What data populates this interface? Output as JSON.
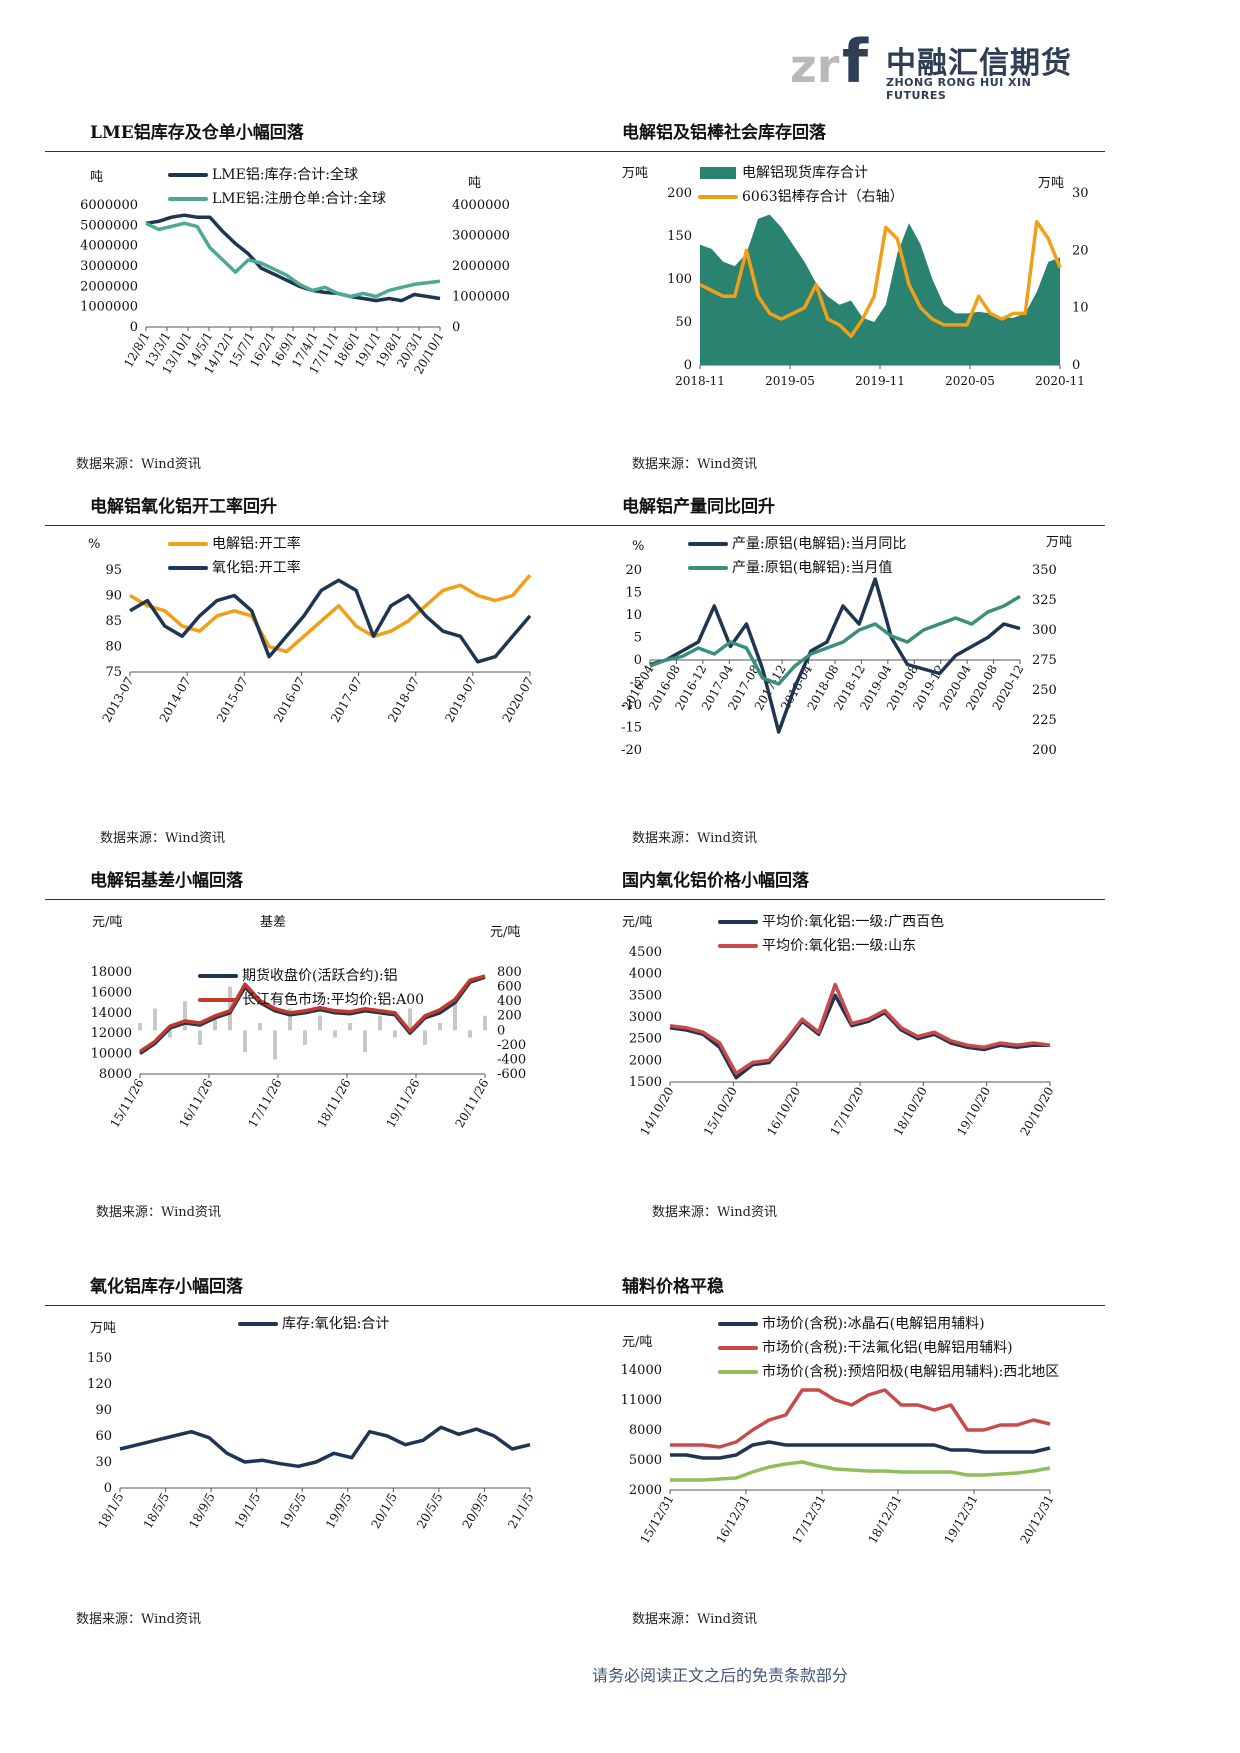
{
  "header": {
    "logo_cn": "中融汇信期货",
    "logo_en": "ZHONG RONG HUI XIN FUTURES"
  },
  "footer": {
    "disclaimer": "请务必阅读正文之后的免责条款部分"
  },
  "charts": [
    {
      "id": "c1",
      "title": "LME铝库存及仓单小幅回落",
      "source": "数据来源：Wind资讯",
      "chart_data": {
        "type": "line",
        "units_left": "吨",
        "units_right": "吨",
        "series": [
          {
            "name": "LME铝:库存:合计:全球",
            "axis": "left",
            "color": "#1f3552",
            "values": [
              5100000,
              5200000,
              5400000,
              5500000,
              5400000,
              5400000,
              4700000,
              4100000,
              3600000,
              2900000,
              2600000,
              2300000,
              2000000,
              1800000,
              1700000,
              1650000,
              1500000,
              1400000,
              1300000,
              1400000,
              1300000,
              1600000,
              1500000,
              1400000
            ]
          },
          {
            "name": "LME铝:注册仓单:合计:全球",
            "axis": "right",
            "color": "#4aaa94",
            "values": [
              3400000,
              3200000,
              3300000,
              3400000,
              3300000,
              2600000,
              2200000,
              1800000,
              2200000,
              2100000,
              1900000,
              1700000,
              1400000,
              1200000,
              1300000,
              1100000,
              1000000,
              1100000,
              1000000,
              1200000,
              1300000,
              1400000,
              1450000,
              1500000
            ]
          }
        ],
        "left_ticks": [
          "6000000",
          "5000000",
          "4000000",
          "3000000",
          "2000000",
          "1000000",
          "0"
        ],
        "right_ticks": [
          "4000000",
          "3000000",
          "2000000",
          "1000000",
          "0"
        ],
        "ylim_left": [
          0,
          6000000
        ],
        "ylim_right": [
          0,
          4000000
        ],
        "x_ticks": [
          "12/8/1",
          "13/3/1",
          "13/10/1",
          "14/5/1",
          "14/12/1",
          "15/7/1",
          "16/2/1",
          "16/9/1",
          "17/4/1",
          "17/11/1",
          "18/6/1",
          "19/1/1",
          "19/8/1",
          "20/3/1",
          "20/10/1"
        ]
      }
    },
    {
      "id": "c2",
      "title": "电解铝及铝棒社会库存回落",
      "source": "数据来源：Wind资讯",
      "chart_data": {
        "type": "area",
        "units_left": "万吨",
        "units_right": "万吨",
        "series": [
          {
            "name": "电解铝现货库存合计",
            "axis": "left",
            "color": "#2a8270",
            "kind": "area",
            "values": [
              140,
              135,
              120,
              115,
              130,
              170,
              175,
              160,
              140,
              120,
              95,
              80,
              70,
              75,
              55,
              50,
              70,
              130,
              165,
              140,
              100,
              70,
              60,
              60,
              62,
              60,
              55,
              55,
              60,
              85,
              120,
              125
            ]
          },
          {
            "name": "6063铝棒存合计（右轴）",
            "axis": "right",
            "color": "#f0a018",
            "kind": "line",
            "values": [
              14,
              13,
              12,
              12,
              20,
              12,
              9,
              8,
              9,
              10,
              14,
              8,
              7,
              5,
              8,
              12,
              24,
              22,
              14,
              10,
              8,
              7,
              7,
              7,
              12,
              9,
              8,
              9,
              9,
              25,
              22,
              17
            ]
          }
        ],
        "left_ticks": [
          "200",
          "150",
          "100",
          "50",
          "0"
        ],
        "right_ticks": [
          "30",
          "20",
          "10",
          "0"
        ],
        "ylim_left": [
          0,
          200
        ],
        "ylim_right": [
          0,
          30
        ],
        "x_ticks": [
          "2018-11",
          "2019-05",
          "2019-11",
          "2020-05",
          "2020-11"
        ]
      }
    },
    {
      "id": "c3",
      "title": "电解铝氧化铝开工率回升",
      "source": "数据来源：Wind资讯",
      "chart_data": {
        "type": "line",
        "units_left": "%",
        "series": [
          {
            "name": "电解铝:开工率",
            "axis": "left",
            "color": "#f0a018",
            "values": [
              90,
              88,
              87,
              84,
              83,
              86,
              87,
              86,
              80,
              79,
              82,
              85,
              88,
              84,
              82,
              83,
              85,
              88,
              91,
              92,
              90,
              89,
              90,
              94
            ]
          },
          {
            "name": "氧化铝:开工率",
            "axis": "left",
            "color": "#1f3552",
            "values": [
              87,
              89,
              84,
              82,
              86,
              89,
              90,
              87,
              78,
              82,
              86,
              91,
              93,
              91,
              82,
              88,
              90,
              86,
              83,
              82,
              77,
              78,
              82,
              86
            ]
          }
        ],
        "left_ticks": [
          "95",
          "90",
          "85",
          "80",
          "75"
        ],
        "ylim_left": [
          75,
          95
        ],
        "x_ticks": [
          "2013-07",
          "2014-07",
          "2015-07",
          "2016-07",
          "2017-07",
          "2018-07",
          "2019-07",
          "2020-07"
        ]
      }
    },
    {
      "id": "c4",
      "title": "电解铝产量同比回升",
      "source": "数据来源：Wind资讯",
      "chart_data": {
        "type": "line",
        "units_left": "%",
        "units_right": "万吨",
        "series": [
          {
            "name": "产量:原铝(电解铝):当月同比",
            "axis": "left",
            "color": "#1f3552",
            "values": [
              -1,
              0,
              2,
              4,
              12,
              3,
              8,
              -2,
              -16,
              -6,
              2,
              4,
              12,
              8,
              18,
              5,
              -1,
              -2,
              -3,
              1,
              3,
              5,
              8,
              7
            ]
          },
          {
            "name": "产量:原铝(电解铝):当月值",
            "axis": "right",
            "color": "#3a8f7a",
            "values": [
              270,
              275,
              278,
              285,
              280,
              290,
              285,
              260,
              255,
              270,
              280,
              285,
              290,
              300,
              305,
              295,
              290,
              300,
              305,
              310,
              305,
              315,
              320,
              328
            ]
          }
        ],
        "left_ticks": [
          "20",
          "15",
          "10",
          "5",
          "0",
          "-5",
          "-10",
          "-15",
          "-20"
        ],
        "right_ticks": [
          "350",
          "325",
          "300",
          "275",
          "250",
          "225",
          "200"
        ],
        "ylim_left": [
          -20,
          20
        ],
        "ylim_right": [
          200,
          350
        ],
        "x_ticks": [
          "2016-04",
          "2016-08",
          "2016-12",
          "2017-04",
          "2017-08",
          "2017-12",
          "2018-04",
          "2018-08",
          "2018-12",
          "2019-04",
          "2019-08",
          "2019-12",
          "2020-04",
          "2020-08",
          "2020-12"
        ]
      }
    },
    {
      "id": "c5",
      "title": "电解铝基差小幅回落",
      "source": "数据来源：Wind资讯",
      "chart_data": {
        "type": "line",
        "units_left": "元/吨",
        "units_right": "元/吨",
        "bar_label": "基差",
        "series": [
          {
            "name": "基差",
            "axis": "right",
            "color": "#c8c8c8",
            "kind": "bar",
            "values": [
              100,
              300,
              -100,
              400,
              -200,
              200,
              600,
              -300,
              100,
              -400,
              300,
              -200,
              200,
              -100,
              100,
              -300,
              200,
              -100,
              300,
              -200,
              100,
              400,
              -100,
              200
            ]
          },
          {
            "name": "期货收盘价(活跃合约):铝",
            "axis": "left",
            "color": "#1f3552",
            "values": [
              10000,
              11000,
              12500,
              13000,
              12800,
              13500,
              14000,
              16500,
              15000,
              14200,
              13800,
              14000,
              14300,
              14000,
              13900,
              14200,
              14000,
              13800,
              12000,
              13500,
              14000,
              15000,
              17000,
              17500
            ]
          },
          {
            "name": "长江有色市场:平均价:铝:A00",
            "axis": "left",
            "color": "#c0392b",
            "values": [
              10200,
              11200,
              12700,
              13200,
              13000,
              13700,
              14200,
              16800,
              15200,
              14400,
              14000,
              14200,
              14500,
              14200,
              14100,
              14400,
              14200,
              14000,
              12200,
              13700,
              14300,
              15300,
              17200,
              17600
            ]
          }
        ],
        "left_ticks": [
          "18000",
          "16000",
          "14000",
          "12000",
          "10000",
          "8000"
        ],
        "right_ticks": [
          "800",
          "600",
          "400",
          "200",
          "0",
          "-200",
          "-400",
          "-600"
        ],
        "ylim_left": [
          8000,
          18000
        ],
        "ylim_right": [
          -600,
          800
        ],
        "x_ticks": [
          "15/11/26",
          "16/11/26",
          "17/11/26",
          "18/11/26",
          "19/11/26",
          "20/11/26"
        ]
      }
    },
    {
      "id": "c6",
      "title": "国内氧化铝价格小幅回落",
      "source": "数据来源：Wind资讯",
      "chart_data": {
        "type": "line",
        "units_left": "元/吨",
        "series": [
          {
            "name": "平均价:氧化铝:一级:广西百色",
            "axis": "left",
            "color": "#1f3552",
            "values": [
              2750,
              2700,
              2600,
              2300,
              1600,
              1900,
              1950,
              2400,
              2900,
              2600,
              3500,
              2800,
              2900,
              3100,
              2700,
              2500,
              2600,
              2400,
              2300,
              2250,
              2350,
              2300,
              2350,
              2350
            ]
          },
          {
            "name": "平均价:氧化铝:一级:山东",
            "axis": "left",
            "color": "#c94a4a",
            "values": [
              2800,
              2750,
              2650,
              2400,
              1700,
              1950,
              2000,
              2450,
              2950,
              2650,
              3750,
              2850,
              2950,
              3150,
              2750,
              2550,
              2650,
              2450,
              2350,
              2300,
              2400,
              2350,
              2400,
              2350
            ]
          }
        ],
        "left_ticks": [
          "4500",
          "4000",
          "3500",
          "3000",
          "2500",
          "2000",
          "1500"
        ],
        "ylim_left": [
          1500,
          4500
        ],
        "x_ticks": [
          "14/10/20",
          "15/10/20",
          "16/10/20",
          "17/10/20",
          "18/10/20",
          "19/10/20",
          "20/10/20"
        ]
      }
    },
    {
      "id": "c7",
      "title": "氧化铝库存小幅回落",
      "source": "数据来源：Wind资讯",
      "chart_data": {
        "type": "line",
        "units_left": "万吨",
        "series": [
          {
            "name": "库存:氧化铝:合计",
            "axis": "left",
            "color": "#1f3552",
            "values": [
              45,
              50,
              55,
              60,
              65,
              58,
              40,
              30,
              32,
              28,
              25,
              30,
              40,
              35,
              65,
              60,
              50,
              55,
              70,
              62,
              68,
              60,
              45,
              50
            ]
          }
        ],
        "left_ticks": [
          "150",
          "120",
          "90",
          "60",
          "30",
          "0"
        ],
        "ylim_left": [
          0,
          150
        ],
        "x_ticks": [
          "18/1/5",
          "18/5/5",
          "18/9/5",
          "19/1/5",
          "19/5/5",
          "19/9/5",
          "20/1/5",
          "20/5/5",
          "20/9/5",
          "21/1/5"
        ]
      }
    },
    {
      "id": "c8",
      "title": "辅料价格平稳",
      "source": "数据来源：Wind资讯",
      "chart_data": {
        "type": "line",
        "units_left": "元/吨",
        "series": [
          {
            "name": "市场价(含税):冰晶石(电解铝用辅料)",
            "axis": "left",
            "color": "#1f3552",
            "values": [
              5500,
              5500,
              5200,
              5200,
              5500,
              6500,
              6800,
              6500,
              6500,
              6500,
              6500,
              6500,
              6500,
              6500,
              6500,
              6500,
              6500,
              6000,
              6000,
              5800,
              5800,
              5800,
              5800,
              6200
            ]
          },
          {
            "name": "市场价(含税):干法氟化铝(电解铝用辅料)",
            "axis": "left",
            "color": "#c94a4a",
            "values": [
              6500,
              6500,
              6500,
              6300,
              6800,
              8000,
              9000,
              9500,
              12000,
              12000,
              11000,
              10500,
              11500,
              12000,
              10500,
              10500,
              10000,
              10500,
              8000,
              8000,
              8500,
              8500,
              9000,
              8600
            ]
          },
          {
            "name": "市场价(含税):预焙阳极(电解铝用辅料):西北地区",
            "axis": "left",
            "color": "#8fbf5a",
            "values": [
              3000,
              3000,
              3000,
              3100,
              3200,
              3800,
              4300,
              4600,
              4800,
              4400,
              4100,
              4000,
              3900,
              3900,
              3800,
              3800,
              3800,
              3800,
              3500,
              3500,
              3600,
              3700,
              3900,
              4200
            ]
          }
        ],
        "left_ticks": [
          "14000",
          "11000",
          "8000",
          "5000",
          "2000"
        ],
        "ylim_left": [
          2000,
          14000
        ],
        "x_ticks": [
          "15/12/31",
          "16/12/31",
          "17/12/31",
          "18/12/31",
          "19/12/31",
          "20/12/31"
        ]
      }
    }
  ]
}
